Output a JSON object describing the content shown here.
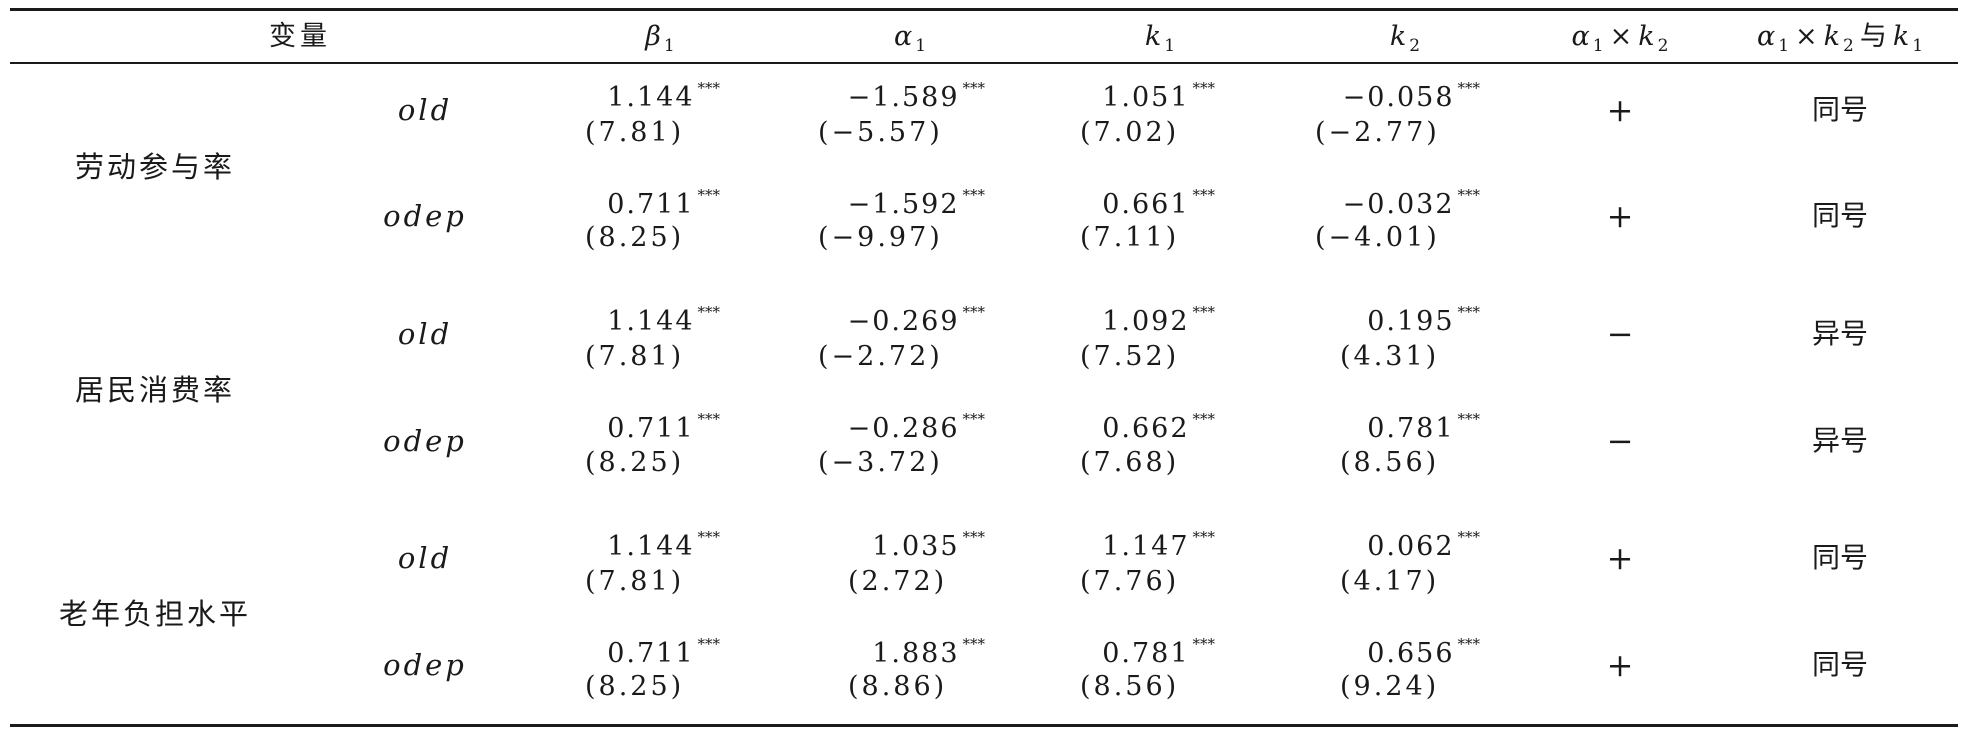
{
  "header": {
    "variable": "变量",
    "beta1": "β",
    "beta1_sub": "1",
    "alpha1": "α",
    "alpha1_sub": "1",
    "k1": "k",
    "k1_sub": "1",
    "k2": "k",
    "k2_sub": "2",
    "prod_alpha": "α",
    "prod_alpha_sub": "1",
    "prod_times": "×",
    "prod_k": "k",
    "prod_k_sub": "2",
    "cmp_alpha": "α",
    "cmp_alpha_sub": "1",
    "cmp_times": "×",
    "cmp_k": "k",
    "cmp_k_sub": "2",
    "cmp_with": "与",
    "cmp_k1": "k",
    "cmp_k1_sub": "1"
  },
  "groups": [
    {
      "category": "劳动参与率",
      "rows": [
        {
          "var": "old",
          "beta1": "1.144",
          "beta1_sig": "***",
          "beta1_t": "(7.81)",
          "alpha1": "−1.589",
          "alpha1_sig": "***",
          "alpha1_t": "(−5.57)",
          "k1": "1.051",
          "k1_sig": "***",
          "k1_t": "(7.02)",
          "k2": "−0.058",
          "k2_sig": "***",
          "k2_t": "(−2.77)",
          "sign": "+",
          "same": "同号"
        },
        {
          "var": "odep",
          "beta1": "0.711",
          "beta1_sig": "***",
          "beta1_t": "(8.25)",
          "alpha1": "−1.592",
          "alpha1_sig": "***",
          "alpha1_t": "(−9.97)",
          "k1": "0.661",
          "k1_sig": "***",
          "k1_t": "(7.11)",
          "k2": "−0.032",
          "k2_sig": "***",
          "k2_t": "(−4.01)",
          "sign": "+",
          "same": "同号"
        }
      ]
    },
    {
      "category": "居民消费率",
      "rows": [
        {
          "var": "old",
          "beta1": "1.144",
          "beta1_sig": "***",
          "beta1_t": "(7.81)",
          "alpha1": "−0.269",
          "alpha1_sig": "***",
          "alpha1_t": "(−2.72)",
          "k1": "1.092",
          "k1_sig": "***",
          "k1_t": "(7.52)",
          "k2": "0.195",
          "k2_sig": "***",
          "k2_t": "(4.31)",
          "sign": "−",
          "same": "异号"
        },
        {
          "var": "odep",
          "beta1": "0.711",
          "beta1_sig": "***",
          "beta1_t": "(8.25)",
          "alpha1": "−0.286",
          "alpha1_sig": "***",
          "alpha1_t": "(−3.72)",
          "k1": "0.662",
          "k1_sig": "***",
          "k1_t": "(7.68)",
          "k2": "0.781",
          "k2_sig": "***",
          "k2_t": "(8.56)",
          "sign": "−",
          "same": "异号"
        }
      ]
    },
    {
      "category": "老年负担水平",
      "rows": [
        {
          "var": "old",
          "beta1": "1.144",
          "beta1_sig": "***",
          "beta1_t": "(7.81)",
          "alpha1": "1.035",
          "alpha1_sig": "***",
          "alpha1_t": "(2.72)",
          "k1": "1.147",
          "k1_sig": "***",
          "k1_t": "(7.76)",
          "k2": "0.062",
          "k2_sig": "***",
          "k2_t": "(4.17)",
          "sign": "+",
          "same": "同号"
        },
        {
          "var": "odep",
          "beta1": "0.711",
          "beta1_sig": "***",
          "beta1_t": "(8.25)",
          "alpha1": "1.883",
          "alpha1_sig": "***",
          "alpha1_t": "(8.86)",
          "k1": "0.781",
          "k1_sig": "***",
          "k1_t": "(8.56)",
          "k2": "0.656",
          "k2_sig": "***",
          "k2_t": "(9.24)",
          "sign": "+",
          "same": "同号"
        }
      ]
    }
  ]
}
